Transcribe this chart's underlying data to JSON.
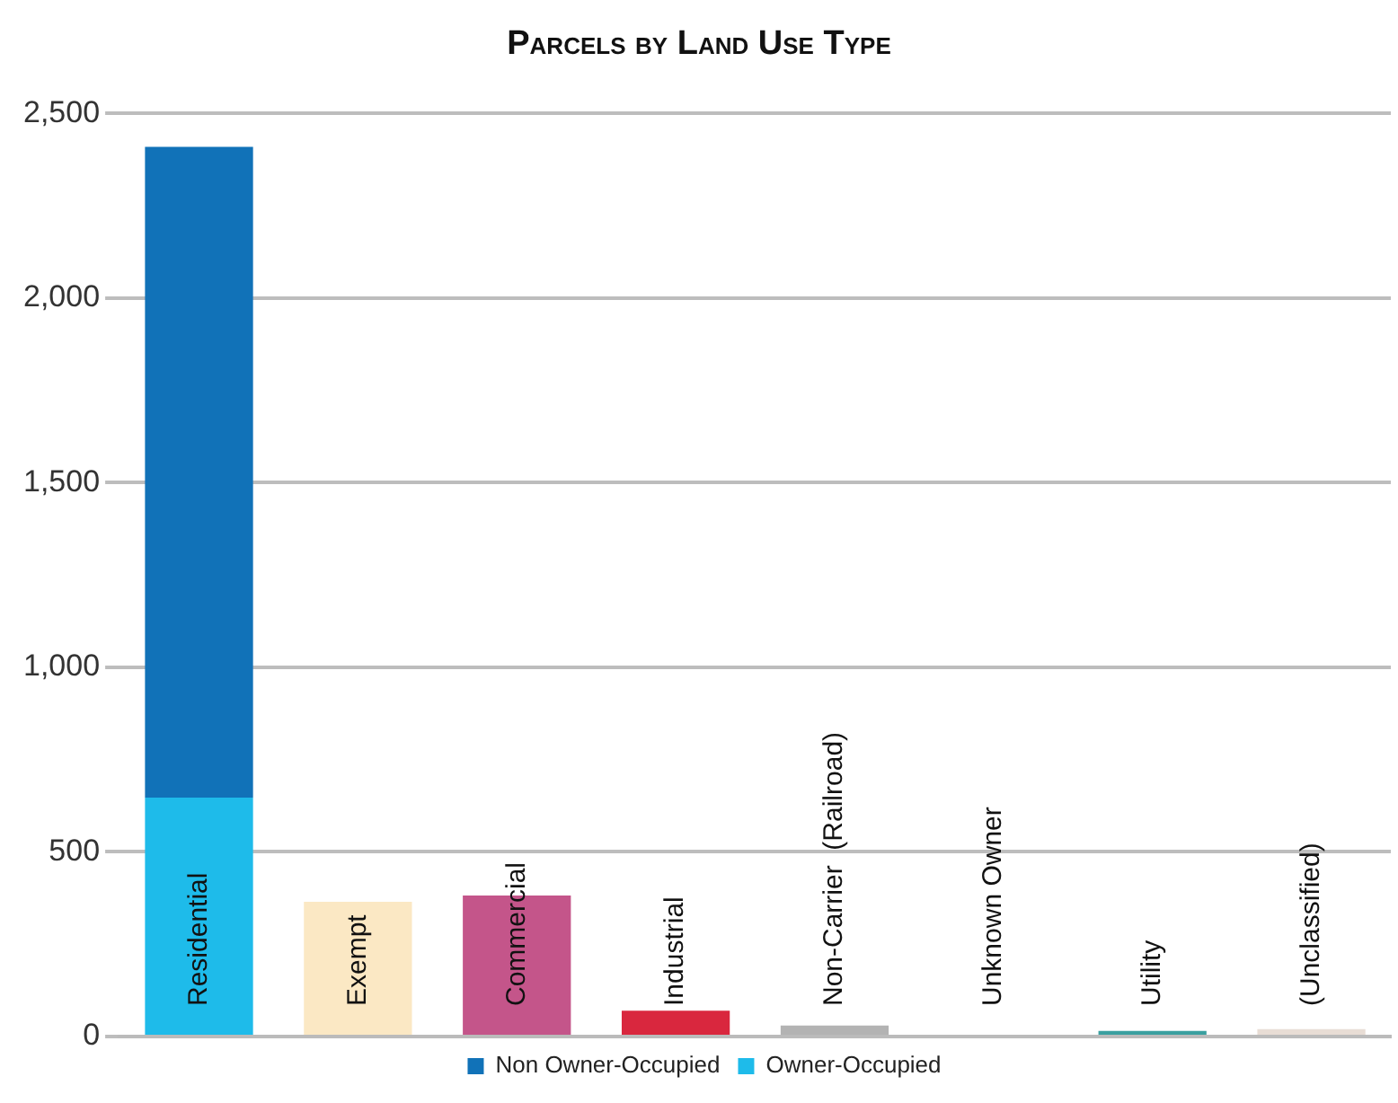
{
  "chart_data": {
    "type": "bar",
    "title": "Parcels by Land Use Type",
    "stacked": true,
    "categories": [
      "Residential",
      "Exempt",
      "Commercial",
      "Industrial",
      "Non-Carrier  (Railroad)",
      "Unknown Owner",
      "Utility",
      "(Unclassified)"
    ],
    "series": [
      {
        "name": "Owner-Occupied",
        "color": "#1ebbea",
        "values": [
          647,
          null,
          null,
          null,
          null,
          null,
          null,
          null
        ]
      },
      {
        "name": "Non Owner-Occupied",
        "color": "#1172b8",
        "values": [
          1763,
          null,
          null,
          null,
          null,
          null,
          null,
          null
        ]
      },
      {
        "colors": [
          "#ffffff",
          "#fbe8c4",
          "#c4558a",
          "#d9273e",
          "#b3b3b3",
          "#c00000",
          "#3aa0a0",
          "#e8ddd5"
        ],
        "values": [
          null,
          365,
          382,
          70,
          30,
          0,
          15,
          20
        ]
      }
    ],
    "ylim": [
      0,
      2500
    ],
    "yticks": [
      {
        "value": 0,
        "label": "0"
      },
      {
        "value": 500,
        "label": "500"
      },
      {
        "value": 1000,
        "label": "1,000"
      },
      {
        "value": 1500,
        "label": "1,500"
      },
      {
        "value": 2000,
        "label": "2,000"
      },
      {
        "value": 2500,
        "label": "2,500"
      }
    ],
    "grid": "y",
    "legend": "bottom"
  }
}
